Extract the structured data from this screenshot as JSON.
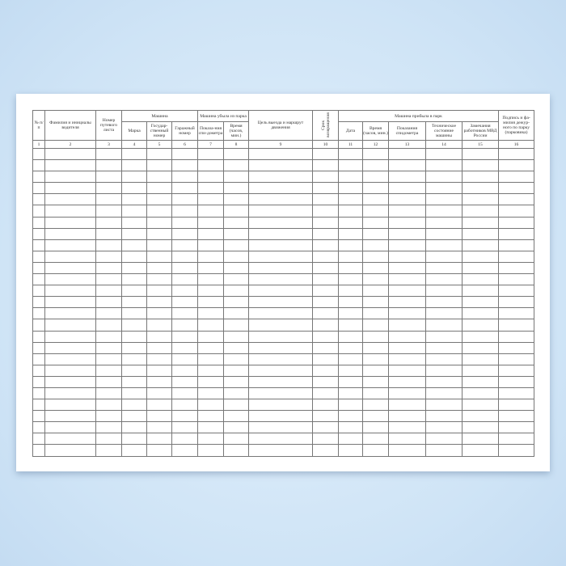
{
  "form": {
    "headers": {
      "c1": "№ п/п",
      "c2": "Фамилия и инициалы водителя",
      "c3": "Номер путевого листа",
      "machine": "Машина",
      "c4": "Марка",
      "c5": "Государ-ственный номер",
      "c6": "Гаражный номер",
      "departed": "Машина убыла из парка",
      "c7": "Показа-ния спи-дометра",
      "c8": "Время (часов, мин.)",
      "c9": "Цель выезда и маршрут движения",
      "c10": "Срок возвращения",
      "arrived": "Машина прибыла в парк",
      "c11": "Дата",
      "c12": "Время (часов, мин.)",
      "c13": "Показания спидометра",
      "c14": "Техническое состояние машины",
      "c15": "Замечания работников МВД России",
      "c16": "Подпись и фа-милия дежур-ного по парку (парковика)"
    },
    "column_numbers": [
      "1",
      "2",
      "3",
      "4",
      "5",
      "6",
      "7",
      "8",
      "9",
      "10",
      "11",
      "12",
      "13",
      "14",
      "15",
      "16"
    ],
    "empty_rows": 27
  },
  "colors": {
    "background": "#d6e8f8",
    "paper": "#ffffff",
    "grid": "#777777"
  }
}
